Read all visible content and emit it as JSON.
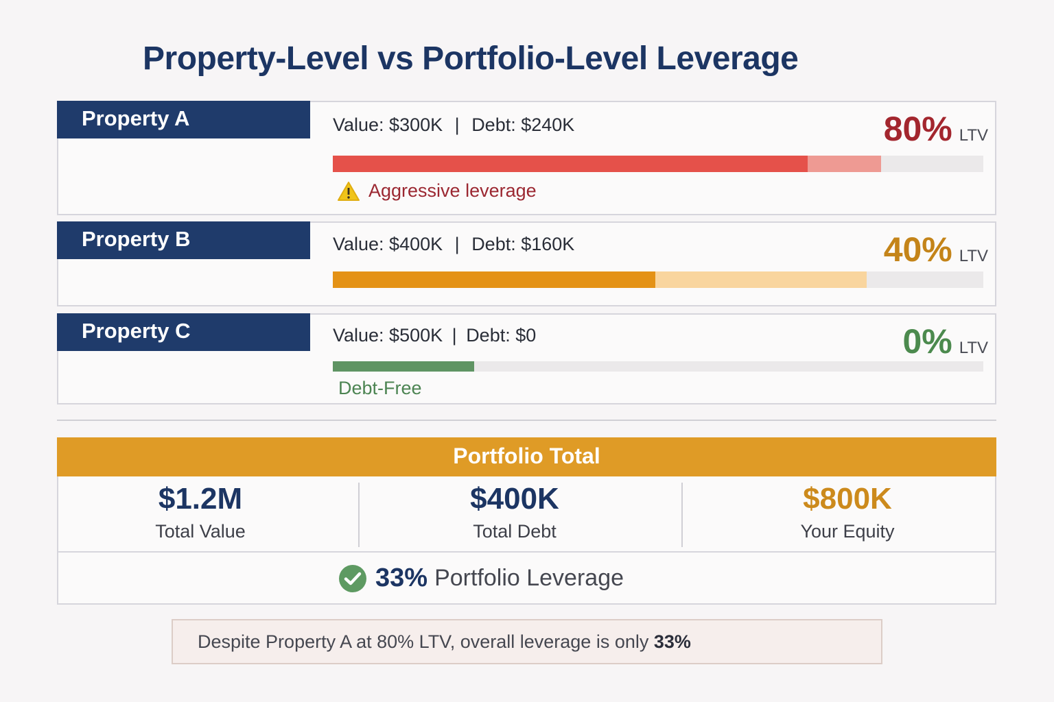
{
  "title": "Property-Level vs Portfolio-Level Leverage",
  "properties": [
    {
      "name": "Property A",
      "value_label": "Value: $300K",
      "separator": "|",
      "debt_label": "Debt: $240K",
      "ltv_value": "80%",
      "ltv_unit": "LTV",
      "ltv_color": "#a3262e",
      "bar": {
        "main_color": "#e5514a",
        "main_pct": 73,
        "light_color": "#ee9a93",
        "light_pct": 84.3,
        "track_color": "#ebe9ea"
      },
      "note": "Aggressive leverage",
      "note_color": "#9b2731",
      "note_icon": "warning-icon"
    },
    {
      "name": "Property B",
      "value_label": "Value: $400K",
      "separator": "|",
      "debt_label": "Debt: $160K",
      "ltv_value": "40%",
      "ltv_unit": "LTV",
      "ltv_color": "#c48419",
      "bar": {
        "main_color": "#e49216",
        "main_pct": 49.6,
        "light_color": "#f9d59e",
        "light_pct": 82.1,
        "track_color": "#ebe9ea"
      },
      "note": "",
      "note_color": ""
    },
    {
      "name": "Property C",
      "value_label": "Value: $500K",
      "separator": "|",
      "debt_label": "Debt: $0",
      "ltv_value": "0%",
      "ltv_unit": "LTV",
      "ltv_color": "#4c8a4e",
      "bar": {
        "main_color": "#5f9463",
        "main_pct": 21.7,
        "light_color": "#ebe9ea",
        "light_pct": 21.7,
        "track_color": "#ebe9ea"
      },
      "note": "Debt-Free",
      "note_color": "#4c8452"
    }
  ],
  "portfolio": {
    "header": "Portfolio Total",
    "header_color": "#df9b26",
    "stats": [
      {
        "value": "$1.2M",
        "label": "Total Value",
        "color": "#1c3563"
      },
      {
        "value": "$400K",
        "label": "Total Debt",
        "color": "#1c3563"
      },
      {
        "value": "$800K",
        "label": "Your Equity",
        "color": "#cc8a1c"
      }
    ],
    "leverage_value": "33%",
    "leverage_label": "Portfolio Leverage",
    "leverage_icon": "check-circle-icon"
  },
  "callout": {
    "text": "Despite Property A at 80% LTV, overall leverage is only ",
    "emphasis": "33%"
  }
}
